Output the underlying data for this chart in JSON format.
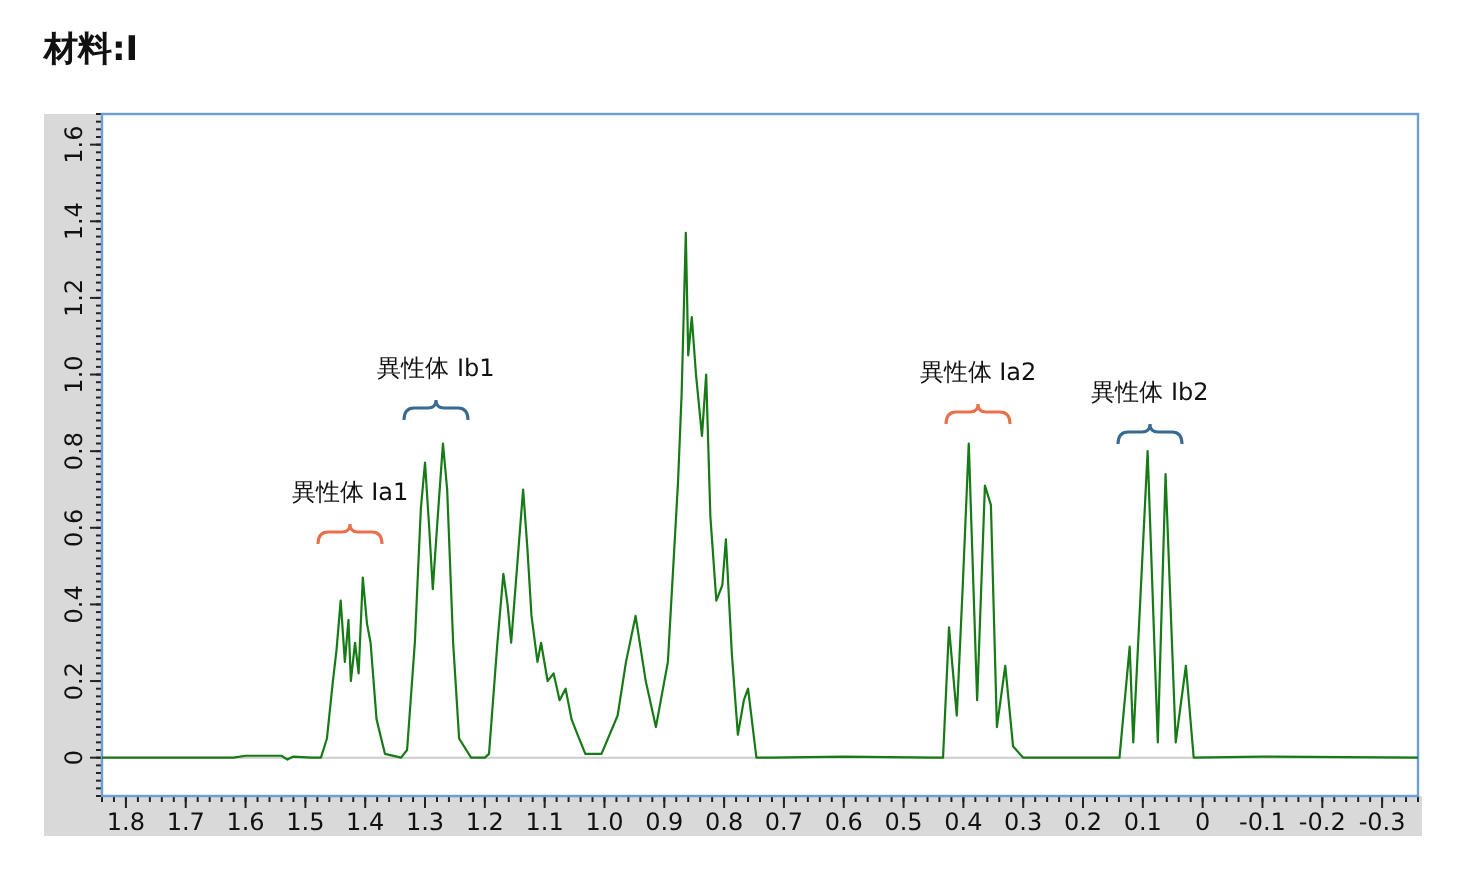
{
  "chart_data": {
    "type": "line",
    "title": "材料:I",
    "xlim": [
      1.84,
      -0.36
    ],
    "ylim": [
      -0.1,
      1.68
    ],
    "xticks": [
      1.8,
      1.7,
      1.6,
      1.5,
      1.4,
      1.3,
      1.2,
      1.1,
      {
        "value": 1,
        "label": "1.0"
      },
      0.9,
      0.8,
      0.7,
      0.6,
      0.5,
      0.4,
      0.3,
      0.2,
      0.1,
      0,
      -0.1,
      -0.2,
      -0.3
    ],
    "yticks": [
      0,
      0.2,
      0.4,
      0.6,
      0.8,
      {
        "value": 1,
        "label": "1.0"
      },
      1.2,
      1.4,
      1.6
    ],
    "grid": false,
    "marker": "none",
    "line_style": "solid",
    "ref_lines": [
      {
        "axis": "y",
        "value": 0,
        "color": "#cccccc"
      }
    ],
    "annotations": [
      "異性体 Ia1",
      "異性体 Ib1",
      "異性体 Ia2",
      "異性体 Ib2"
    ],
    "series": [
      {
        "color": "#167a16",
        "x": [
          1.84,
          1.62,
          1.6,
          1.54,
          1.53,
          1.52,
          1.49,
          1.474,
          1.464,
          1.454,
          1.448,
          1.441,
          1.434,
          1.428,
          1.424,
          1.417,
          1.411,
          1.404,
          1.397,
          1.391,
          1.381,
          1.367,
          1.34,
          1.33,
          1.317,
          1.307,
          1.3,
          1.293,
          1.287,
          1.28,
          1.27,
          1.263,
          1.253,
          1.243,
          1.223,
          1.2,
          1.193,
          1.179,
          1.169,
          1.162,
          1.156,
          1.146,
          1.136,
          1.129,
          1.122,
          1.112,
          1.106,
          1.095,
          1.085,
          1.075,
          1.065,
          1.055,
          1.045,
          1.032,
          1.005,
          0.978,
          0.964,
          0.948,
          0.931,
          0.914,
          0.894,
          0.877,
          0.871,
          0.864,
          0.86,
          0.854,
          0.847,
          0.837,
          0.83,
          0.823,
          0.813,
          0.803,
          0.797,
          0.787,
          0.777,
          0.767,
          0.76,
          0.746,
          0.72,
          0.6,
          0.45,
          0.434,
          0.424,
          0.411,
          0.401,
          0.391,
          0.377,
          0.364,
          0.354,
          0.344,
          0.33,
          0.317,
          0.3,
          0.2,
          0.139,
          0.122,
          0.116,
          0.092,
          0.075,
          0.062,
          0.045,
          0.028,
          0.015,
          -0.1,
          -0.36
        ],
        "values": [
          0,
          0,
          0.005,
          0.005,
          -0.005,
          0.003,
          0,
          0,
          0.05,
          0.2,
          0.28,
          0.41,
          0.25,
          0.36,
          0.2,
          0.3,
          0.22,
          0.47,
          0.35,
          0.3,
          0.1,
          0.01,
          0,
          0.02,
          0.3,
          0.65,
          0.77,
          0.6,
          0.44,
          0.6,
          0.82,
          0.7,
          0.3,
          0.05,
          0,
          0,
          0.01,
          0.3,
          0.48,
          0.4,
          0.3,
          0.5,
          0.7,
          0.55,
          0.37,
          0.25,
          0.3,
          0.2,
          0.22,
          0.15,
          0.18,
          0.1,
          0.06,
          0.01,
          0.01,
          0.11,
          0.25,
          0.37,
          0.2,
          0.08,
          0.25,
          0.72,
          0.95,
          1.37,
          1.05,
          1.15,
          1.0,
          0.84,
          1.0,
          0.63,
          0.41,
          0.45,
          0.57,
          0.27,
          0.06,
          0.15,
          0.18,
          0,
          0,
          0.003,
          0,
          0,
          0.34,
          0.11,
          0.45,
          0.82,
          0.15,
          0.71,
          0.66,
          0.08,
          0.24,
          0.03,
          0,
          0,
          0,
          0.29,
          0.04,
          0.8,
          0.04,
          0.74,
          0.04,
          0.24,
          0,
          0.003,
          0
        ]
      }
    ]
  }
}
